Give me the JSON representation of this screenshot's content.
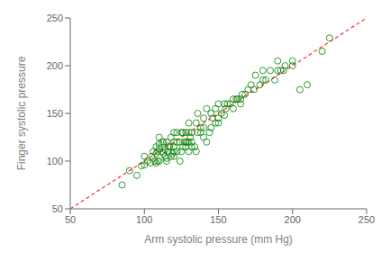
{
  "chart_data": {
    "type": "scatter",
    "xlabel": "Arm systolic pressure (mm Hg)",
    "ylabel": "Finger systolic pressure",
    "xlim": [
      50,
      250
    ],
    "ylim": [
      50,
      250
    ],
    "xticks": [
      50,
      100,
      150,
      200,
      250
    ],
    "yticks": [
      50,
      100,
      150,
      200,
      250
    ],
    "grid": false,
    "series": [
      {
        "type": "scatter",
        "marker": "circle",
        "color": "#008000",
        "x": [
          85,
          90,
          95,
          98,
          100,
          100,
          102,
          104,
          105,
          106,
          107,
          108,
          108,
          108,
          109,
          109,
          110,
          110,
          110,
          110,
          112,
          112,
          113,
          113,
          114,
          114,
          115,
          115,
          115,
          116,
          116,
          117,
          118,
          118,
          119,
          120,
          120,
          120,
          120,
          120,
          122,
          122,
          122,
          124,
          124,
          125,
          125,
          126,
          126,
          127,
          128,
          128,
          128,
          129,
          130,
          130,
          130,
          130,
          131,
          132,
          132,
          132,
          134,
          135,
          135,
          136,
          136,
          138,
          138,
          140,
          140,
          140,
          142,
          142,
          144,
          145,
          145,
          146,
          148,
          148,
          150,
          150,
          150,
          152,
          154,
          154,
          155,
          156,
          158,
          160,
          160,
          162,
          163,
          165,
          165,
          166,
          168,
          170,
          172,
          174,
          175,
          178,
          180,
          180,
          182,
          185,
          188,
          190,
          190,
          192,
          194,
          195,
          200,
          200,
          205,
          210,
          220,
          225
        ],
        "values": [
          75,
          90,
          85,
          95,
          96,
          105,
          100,
          98,
          105,
          110,
          100,
          98,
          108,
          115,
          100,
          110,
          100,
          113,
          118,
          125,
          110,
          120,
          108,
          120,
          105,
          112,
          100,
          103,
          120,
          110,
          115,
          115,
          105,
          125,
          108,
          105,
          110,
          115,
          120,
          130,
          110,
          120,
          130,
          100,
          120,
          110,
          130,
          115,
          130,
          120,
          115,
          120,
          130,
          120,
          110,
          120,
          130,
          140,
          125,
          115,
          120,
          130,
          115,
          110,
          140,
          130,
          150,
          130,
          135,
          125,
          135,
          145,
          120,
          155,
          130,
          135,
          150,
          145,
          140,
          155,
          140,
          145,
          160,
          150,
          148,
          160,
          155,
          160,
          160,
          155,
          165,
          165,
          165,
          160,
          165,
          170,
          170,
          175,
          180,
          175,
          190,
          180,
          185,
          195,
          185,
          195,
          185,
          195,
          205,
          195,
          195,
          200,
          200,
          205,
          175,
          180,
          215,
          229
        ]
      },
      {
        "type": "line",
        "line_style": "dashed",
        "color": "#FF3333",
        "x": [
          50,
          250
        ],
        "values": [
          50,
          250
        ]
      }
    ]
  }
}
